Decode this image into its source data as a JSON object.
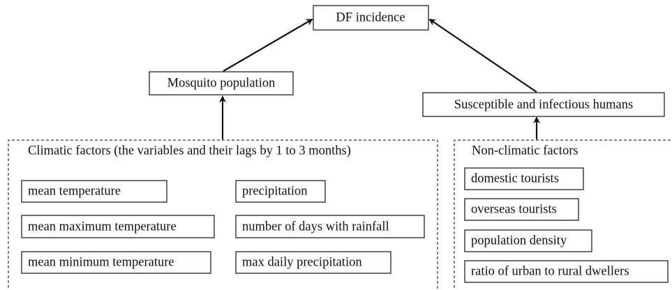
{
  "outcome": "DF incidence",
  "mediators": [
    "Mosquito population",
    "Susceptible and infectious humans"
  ],
  "climatic": {
    "title": "Climatic factors (the variables and their lags by 1 to 3 months)",
    "factors": [
      "mean temperature",
      "precipitation",
      "mean maximum temperature",
      "number of days with rainfall",
      "mean minimum temperature",
      "max daily precipitation"
    ]
  },
  "non_climatic": {
    "title": "Non-climatic factors",
    "factors": [
      "domestic tourists",
      "overseas tourists",
      "population density",
      "ratio of urban to rural dwellers"
    ]
  }
}
